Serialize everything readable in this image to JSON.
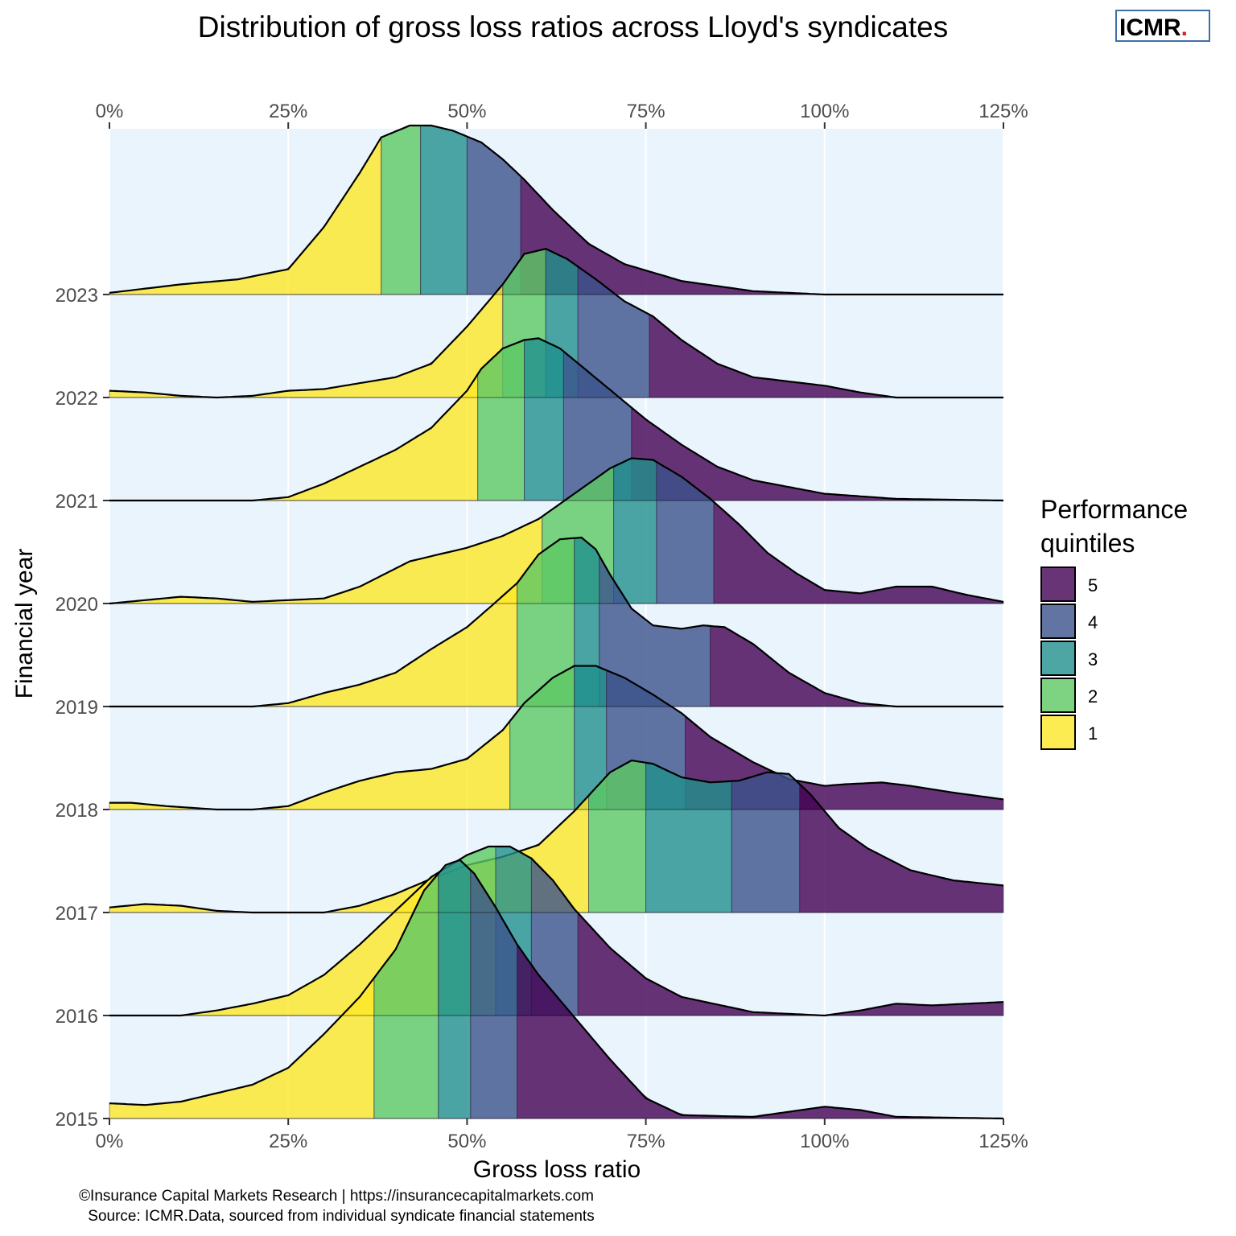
{
  "title": "Distribution of gross loss ratios across Lloyd's syndicates",
  "logo": {
    "text": "ICMR",
    "dot": "."
  },
  "x_axis_label": "Gross loss ratio",
  "y_axis_label": "Financial year",
  "x_ticks": [
    "0%",
    "25%",
    "50%",
    "75%",
    "100%",
    "125%"
  ],
  "legend": {
    "title_line1": "Performance",
    "title_line2": "quintiles",
    "items": [
      {
        "label": "5",
        "color": "#440154"
      },
      {
        "label": "4",
        "color": "#3b528b"
      },
      {
        "label": "3",
        "color": "#21908c"
      },
      {
        "label": "2",
        "color": "#5dc863"
      },
      {
        "label": "1",
        "color": "#fde725"
      }
    ]
  },
  "caption_line1": "©Insurance Capital Markets Research | https://insurancecapitalmarkets.com",
  "caption_line2": "Source: ICMR.Data, sourced from individual syndicate financial statements",
  "colors": {
    "panel_bg": "#eaf4fd",
    "grid": "#ffffff",
    "logo_border": "#3f6fa6",
    "logo_dot": "#e31a1c"
  },
  "chart_data": {
    "type": "area",
    "subtype": "ridgeline density",
    "x_unit": "gross loss ratio (%)",
    "xlim": [
      0,
      125
    ],
    "years": [
      "2023",
      "2022",
      "2021",
      "2020",
      "2019",
      "2018",
      "2017",
      "2016",
      "2015"
    ],
    "ridges": [
      {
        "year": "2023",
        "quintile_breaks": [
          38,
          43.5,
          50,
          57.5
        ],
        "density": [
          [
            0,
            0.01
          ],
          [
            10,
            0.06
          ],
          [
            18,
            0.09
          ],
          [
            25,
            0.15
          ],
          [
            30,
            0.4
          ],
          [
            35,
            0.72
          ],
          [
            38,
            0.93
          ],
          [
            42,
            1.0
          ],
          [
            45,
            1.0
          ],
          [
            48,
            0.97
          ],
          [
            52,
            0.9
          ],
          [
            55,
            0.8
          ],
          [
            58,
            0.68
          ],
          [
            62,
            0.5
          ],
          [
            67,
            0.3
          ],
          [
            72,
            0.18
          ],
          [
            80,
            0.08
          ],
          [
            90,
            0.02
          ],
          [
            100,
            0
          ],
          [
            125,
            0
          ]
        ]
      },
      {
        "year": "2022",
        "quintile_breaks": [
          55,
          61,
          65.5,
          75.5
        ],
        "density": [
          [
            0,
            0.04
          ],
          [
            5,
            0.03
          ],
          [
            10,
            0.01
          ],
          [
            15,
            0
          ],
          [
            20,
            0.01
          ],
          [
            25,
            0.04
          ],
          [
            30,
            0.05
          ],
          [
            40,
            0.12
          ],
          [
            45,
            0.2
          ],
          [
            50,
            0.42
          ],
          [
            55,
            0.67
          ],
          [
            58,
            0.85
          ],
          [
            61,
            0.88
          ],
          [
            64,
            0.82
          ],
          [
            68,
            0.7
          ],
          [
            72,
            0.57
          ],
          [
            76,
            0.48
          ],
          [
            80,
            0.34
          ],
          [
            85,
            0.2
          ],
          [
            90,
            0.12
          ],
          [
            100,
            0.07
          ],
          [
            105,
            0.03
          ],
          [
            110,
            0
          ],
          [
            125,
            0
          ]
        ]
      },
      {
        "year": "2021",
        "quintile_breaks": [
          51.5,
          58,
          63.5,
          73
        ],
        " density_note": "",
        "density": [
          [
            0,
            0
          ],
          [
            20,
            0
          ],
          [
            25,
            0.02
          ],
          [
            30,
            0.1
          ],
          [
            40,
            0.3
          ],
          [
            45,
            0.43
          ],
          [
            50,
            0.65
          ],
          [
            52,
            0.78
          ],
          [
            55,
            0.9
          ],
          [
            58,
            0.95
          ],
          [
            60,
            0.96
          ],
          [
            63,
            0.9
          ],
          [
            67,
            0.76
          ],
          [
            71,
            0.62
          ],
          [
            75,
            0.48
          ],
          [
            80,
            0.33
          ],
          [
            85,
            0.2
          ],
          [
            90,
            0.12
          ],
          [
            100,
            0.04
          ],
          [
            110,
            0.01
          ],
          [
            125,
            0
          ]
        ]
      },
      {
        "year": "2020",
        "quintile_breaks": [
          60.5,
          70.5,
          76.5,
          84.5
        ],
        "density": [
          [
            0,
            0
          ],
          [
            5,
            0.02
          ],
          [
            10,
            0.04
          ],
          [
            15,
            0.03
          ],
          [
            20,
            0.01
          ],
          [
            30,
            0.03
          ],
          [
            35,
            0.1
          ],
          [
            42,
            0.25
          ],
          [
            50,
            0.33
          ],
          [
            55,
            0.4
          ],
          [
            60,
            0.5
          ],
          [
            65,
            0.65
          ],
          [
            70,
            0.8
          ],
          [
            73,
            0.86
          ],
          [
            76,
            0.85
          ],
          [
            80,
            0.75
          ],
          [
            84,
            0.62
          ],
          [
            88,
            0.47
          ],
          [
            92,
            0.3
          ],
          [
            96,
            0.18
          ],
          [
            100,
            0.08
          ],
          [
            105,
            0.06
          ],
          [
            110,
            0.1
          ],
          [
            115,
            0.1
          ],
          [
            120,
            0.05
          ],
          [
            125,
            0.01
          ]
        ]
      },
      {
        "year": "2019",
        "quintile_breaks": [
          57,
          65,
          68.5,
          84
        ],
        "density": [
          [
            0,
            0
          ],
          [
            20,
            0
          ],
          [
            25,
            0.02
          ],
          [
            30,
            0.08
          ],
          [
            35,
            0.13
          ],
          [
            40,
            0.2
          ],
          [
            45,
            0.34
          ],
          [
            50,
            0.47
          ],
          [
            53,
            0.58
          ],
          [
            57,
            0.73
          ],
          [
            60,
            0.9
          ],
          [
            63,
            0.99
          ],
          [
            66,
            1.0
          ],
          [
            68,
            0.93
          ],
          [
            70,
            0.78
          ],
          [
            73,
            0.58
          ],
          [
            76,
            0.48
          ],
          [
            80,
            0.46
          ],
          [
            83,
            0.48
          ],
          [
            86,
            0.47
          ],
          [
            90,
            0.37
          ],
          [
            95,
            0.2
          ],
          [
            100,
            0.08
          ],
          [
            105,
            0.02
          ],
          [
            110,
            0
          ],
          [
            125,
            0
          ]
        ]
      },
      {
        "year": "2018",
        "quintile_breaks": [
          56,
          65,
          69.5,
          80.5
        ],
        "density": [
          [
            0,
            0.04
          ],
          [
            3,
            0.04
          ],
          [
            8,
            0.02
          ],
          [
            15,
            0
          ],
          [
            20,
            0
          ],
          [
            25,
            0.02
          ],
          [
            30,
            0.1
          ],
          [
            35,
            0.17
          ],
          [
            40,
            0.22
          ],
          [
            45,
            0.24
          ],
          [
            50,
            0.3
          ],
          [
            55,
            0.47
          ],
          [
            58,
            0.63
          ],
          [
            62,
            0.78
          ],
          [
            65,
            0.85
          ],
          [
            68,
            0.85
          ],
          [
            72,
            0.78
          ],
          [
            76,
            0.68
          ],
          [
            80,
            0.57
          ],
          [
            84,
            0.43
          ],
          [
            90,
            0.28
          ],
          [
            95,
            0.18
          ],
          [
            100,
            0.14
          ],
          [
            103,
            0.15
          ],
          [
            108,
            0.16
          ],
          [
            112,
            0.14
          ],
          [
            118,
            0.1
          ],
          [
            125,
            0.06
          ]
        ]
      },
      {
        "year": "2017",
        "quintile_breaks": [
          67,
          75,
          87,
          96.5
        ],
        "density": [
          [
            0,
            0.03
          ],
          [
            5,
            0.05
          ],
          [
            10,
            0.04
          ],
          [
            15,
            0.01
          ],
          [
            20,
            0
          ],
          [
            30,
            0
          ],
          [
            35,
            0.04
          ],
          [
            40,
            0.11
          ],
          [
            45,
            0.2
          ],
          [
            50,
            0.28
          ],
          [
            55,
            0.33
          ],
          [
            60,
            0.4
          ],
          [
            65,
            0.6
          ],
          [
            70,
            0.83
          ],
          [
            73,
            0.9
          ],
          [
            76,
            0.88
          ],
          [
            80,
            0.8
          ],
          [
            84,
            0.77
          ],
          [
            88,
            0.78
          ],
          [
            92,
            0.83
          ],
          [
            95,
            0.82
          ],
          [
            98,
            0.7
          ],
          [
            102,
            0.5
          ],
          [
            106,
            0.38
          ],
          [
            112,
            0.25
          ],
          [
            118,
            0.19
          ],
          [
            125,
            0.16
          ]
        ]
      },
      {
        "year": "2016",
        "quintile_breaks": [
          46,
          54,
          59,
          65.5
        ],
        "density": [
          [
            0,
            0
          ],
          [
            10,
            0
          ],
          [
            15,
            0.03
          ],
          [
            20,
            0.07
          ],
          [
            25,
            0.12
          ],
          [
            30,
            0.24
          ],
          [
            35,
            0.42
          ],
          [
            40,
            0.62
          ],
          [
            45,
            0.82
          ],
          [
            50,
            0.95
          ],
          [
            53,
            1.0
          ],
          [
            56,
            1.0
          ],
          [
            59,
            0.93
          ],
          [
            62,
            0.8
          ],
          [
            65,
            0.63
          ],
          [
            70,
            0.4
          ],
          [
            75,
            0.22
          ],
          [
            80,
            0.11
          ],
          [
            90,
            0.02
          ],
          [
            100,
            0
          ],
          [
            105,
            0.03
          ],
          [
            110,
            0.07
          ],
          [
            115,
            0.06
          ],
          [
            120,
            0.07
          ],
          [
            125,
            0.08
          ]
        ]
      },
      {
        "year": "2015",
        "quintile_breaks": [
          37,
          46,
          50.5,
          57
        ],
        "density": [
          [
            0,
            0.09
          ],
          [
            5,
            0.08
          ],
          [
            10,
            0.1
          ],
          [
            15,
            0.15
          ],
          [
            20,
            0.2
          ],
          [
            25,
            0.3
          ],
          [
            30,
            0.5
          ],
          [
            35,
            0.72
          ],
          [
            40,
            1.0
          ],
          [
            44,
            1.35
          ],
          [
            47,
            1.5
          ],
          [
            49,
            1.53
          ],
          [
            51,
            1.45
          ],
          [
            54,
            1.25
          ],
          [
            57,
            1.03
          ],
          [
            60,
            0.85
          ],
          [
            65,
            0.6
          ],
          [
            70,
            0.35
          ],
          [
            75,
            0.12
          ],
          [
            80,
            0.02
          ],
          [
            90,
            0.01
          ],
          [
            100,
            0.07
          ],
          [
            105,
            0.05
          ],
          [
            110,
            0.01
          ],
          [
            125,
            0
          ]
        ]
      }
    ]
  }
}
